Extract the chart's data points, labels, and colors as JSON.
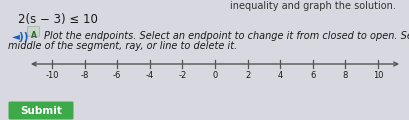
{
  "top_text": "inequality and graph the solution.",
  "equation": "2(s − 3) ≤ 10",
  "instruction_line1": "Plot the endpoints. Select an endpoint to change it from closed to open. Select the",
  "instruction_line2": "middle of the segment, ray, or line to delete it.",
  "tick_positions": [
    -10,
    -8,
    -6,
    -4,
    -2,
    0,
    2,
    4,
    6,
    8,
    10
  ],
  "tick_labels": [
    "-10",
    "-8",
    "-6",
    "-4",
    "-2",
    "0",
    "2",
    "4",
    "6",
    "8",
    "10"
  ],
  "background_color": "#d8d8e0",
  "line_color": "#555555",
  "text_color": "#1a1a1a",
  "speaker_color": "#1a5fbf",
  "submit_color": "#3daa4a",
  "submit_text": "Submit",
  "top_text_color": "#333333",
  "fig_width": 4.1,
  "fig_height": 1.2
}
